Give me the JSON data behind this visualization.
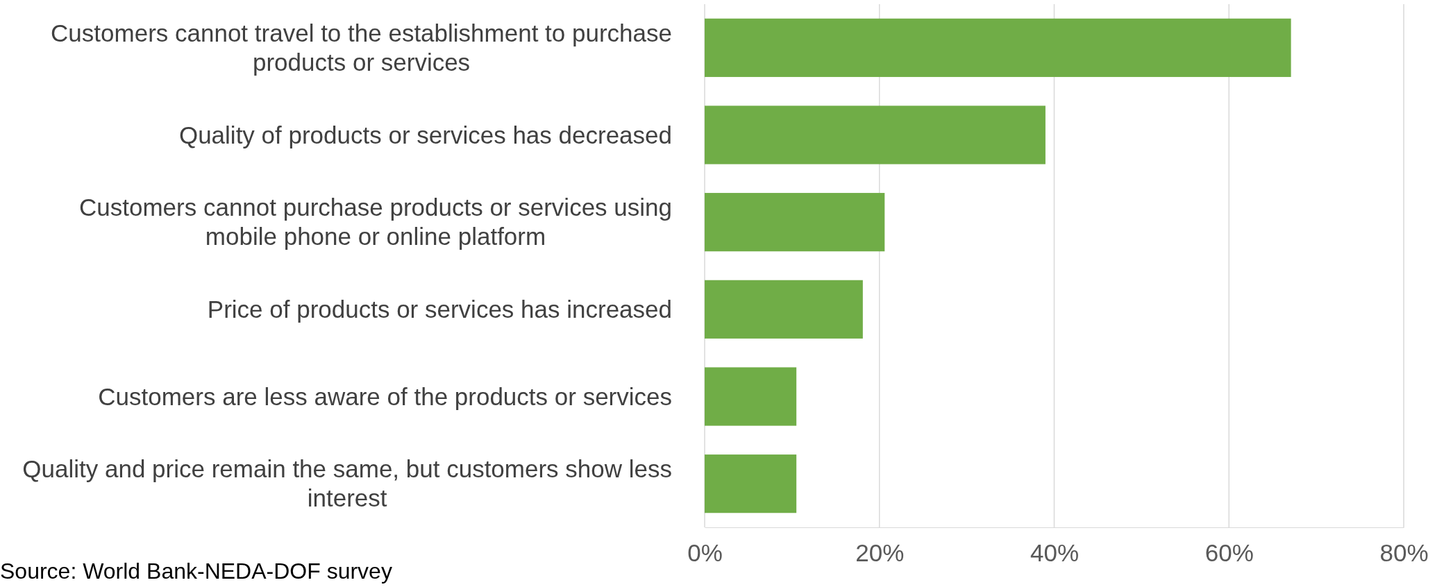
{
  "chart_data": {
    "type": "bar",
    "orientation": "horizontal",
    "categories": [
      "Customers cannot travel to the establishment to purchase products or services",
      "Quality of products or services has decreased",
      "Customers cannot purchase products or services using mobile phone or online platform",
      "Price of products or services has increased",
      "Customers are less aware of the products or services",
      "Quality and price remain the same, but customers show less interest"
    ],
    "values": [
      67.1,
      39.0,
      20.6,
      18.1,
      10.5,
      10.5
    ],
    "color": "#70ad47",
    "xlim": [
      0,
      80
    ],
    "xticks": [
      {
        "value": 0,
        "label": "0%"
      },
      {
        "value": 20,
        "label": "20%"
      },
      {
        "value": 40,
        "label": "40%"
      },
      {
        "value": 60,
        "label": "60%"
      },
      {
        "value": 80,
        "label": "80%"
      }
    ],
    "grid": "x",
    "annotations": [
      "Source: World Bank-NEDA-DOF survey"
    ]
  }
}
